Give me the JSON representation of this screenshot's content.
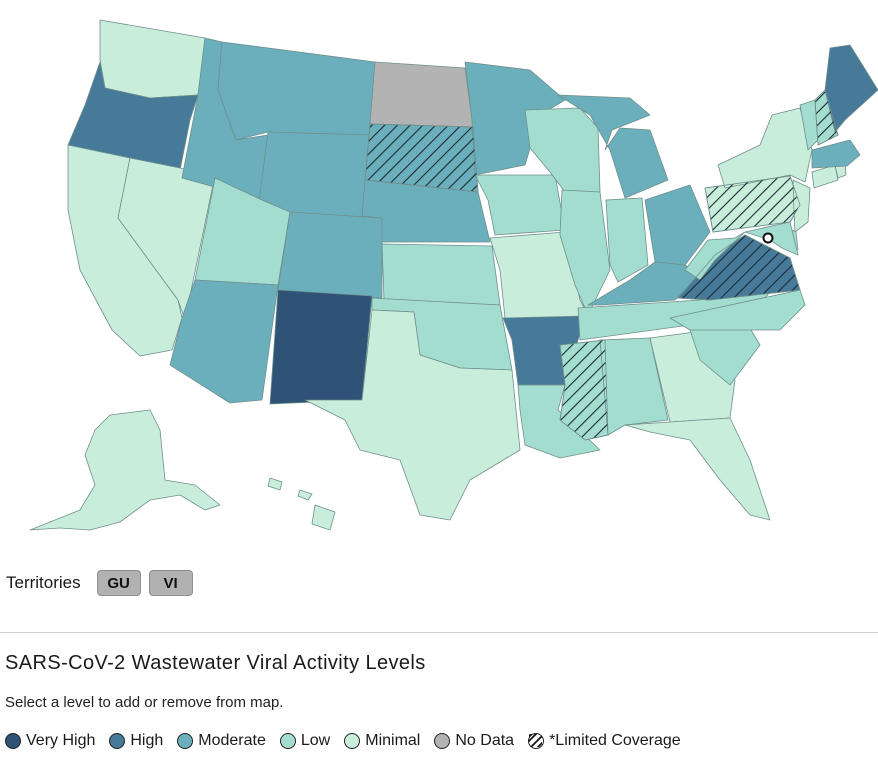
{
  "colors": {
    "very_high": "#2f5277",
    "high": "#467a98",
    "moderate": "#6bafbc",
    "low": "#a2ddd0",
    "minimal": "#c8eedb",
    "no_data": "#b3b3b3"
  },
  "states": [
    {
      "id": "WA",
      "level": "minimal",
      "limited": false
    },
    {
      "id": "OR",
      "level": "high",
      "limited": false
    },
    {
      "id": "CA",
      "level": "minimal",
      "limited": false
    },
    {
      "id": "NV",
      "level": "minimal",
      "limited": false
    },
    {
      "id": "ID",
      "level": "moderate",
      "limited": false
    },
    {
      "id": "MT",
      "level": "moderate",
      "limited": false
    },
    {
      "id": "WY",
      "level": "moderate",
      "limited": false
    },
    {
      "id": "UT",
      "level": "low",
      "limited": false
    },
    {
      "id": "AZ",
      "level": "moderate",
      "limited": false
    },
    {
      "id": "CO",
      "level": "moderate",
      "limited": false
    },
    {
      "id": "NM",
      "level": "very_high",
      "limited": false
    },
    {
      "id": "ND",
      "level": "no_data",
      "limited": false
    },
    {
      "id": "SD",
      "level": "moderate",
      "limited": true
    },
    {
      "id": "NE",
      "level": "moderate",
      "limited": false
    },
    {
      "id": "KS",
      "level": "low",
      "limited": false
    },
    {
      "id": "OK",
      "level": "low",
      "limited": false
    },
    {
      "id": "TX",
      "level": "minimal",
      "limited": false
    },
    {
      "id": "MN",
      "level": "moderate",
      "limited": false
    },
    {
      "id": "IA",
      "level": "low",
      "limited": false
    },
    {
      "id": "MO",
      "level": "minimal",
      "limited": false
    },
    {
      "id": "AR",
      "level": "high",
      "limited": false
    },
    {
      "id": "LA",
      "level": "low",
      "limited": false
    },
    {
      "id": "WI",
      "level": "low",
      "limited": false
    },
    {
      "id": "IL",
      "level": "low",
      "limited": false
    },
    {
      "id": "MI",
      "level": "moderate",
      "limited": false
    },
    {
      "id": "IN",
      "level": "low",
      "limited": false
    },
    {
      "id": "OH",
      "level": "moderate",
      "limited": false
    },
    {
      "id": "KY",
      "level": "moderate",
      "limited": false
    },
    {
      "id": "TN",
      "level": "low",
      "limited": false
    },
    {
      "id": "MS",
      "level": "low",
      "limited": true
    },
    {
      "id": "AL",
      "level": "low",
      "limited": false
    },
    {
      "id": "GA",
      "level": "minimal",
      "limited": false
    },
    {
      "id": "FL",
      "level": "minimal",
      "limited": false
    },
    {
      "id": "SC",
      "level": "low",
      "limited": false
    },
    {
      "id": "NC",
      "level": "low",
      "limited": false
    },
    {
      "id": "VA",
      "level": "high",
      "limited": true
    },
    {
      "id": "WV",
      "level": "low",
      "limited": false
    },
    {
      "id": "PA",
      "level": "minimal",
      "limited": true
    },
    {
      "id": "NY",
      "level": "minimal",
      "limited": false
    },
    {
      "id": "NJ",
      "level": "minimal",
      "limited": false
    },
    {
      "id": "DE",
      "level": "low",
      "limited": false
    },
    {
      "id": "MD",
      "level": "low",
      "limited": false
    },
    {
      "id": "DC",
      "level": "minimal",
      "limited": false
    },
    {
      "id": "CT",
      "level": "minimal",
      "limited": false
    },
    {
      "id": "RI",
      "level": "minimal",
      "limited": false
    },
    {
      "id": "MA",
      "level": "moderate",
      "limited": false
    },
    {
      "id": "VT",
      "level": "low",
      "limited": false
    },
    {
      "id": "NH",
      "level": "low",
      "limited": true
    },
    {
      "id": "ME",
      "level": "high",
      "limited": false
    },
    {
      "id": "AK",
      "level": "minimal",
      "limited": false
    },
    {
      "id": "HI",
      "level": "minimal",
      "limited": false
    }
  ],
  "territories": {
    "label": "Territories",
    "items": [
      "GU",
      "VI"
    ]
  },
  "legend": {
    "title": "SARS-CoV-2 Wastewater Viral Activity Levels",
    "subtitle": "Select a level to add or remove from map.",
    "items": [
      {
        "key": "very_high",
        "label": "Very High"
      },
      {
        "key": "high",
        "label": "High"
      },
      {
        "key": "moderate",
        "label": "Moderate"
      },
      {
        "key": "low",
        "label": "Low"
      },
      {
        "key": "minimal",
        "label": "Minimal"
      },
      {
        "key": "no_data",
        "label": "No Data"
      },
      {
        "key": "limited",
        "label": "*Limited Coverage"
      }
    ]
  }
}
